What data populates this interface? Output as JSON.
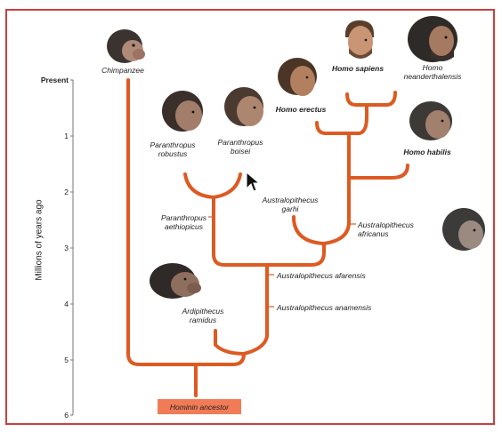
{
  "axis": {
    "title": "Millions of years ago",
    "ticks": [
      "Present",
      "1",
      "2",
      "3",
      "4",
      "5",
      "6"
    ]
  },
  "species": {
    "chimpanzee": "Chimpanzee",
    "homo_sapiens": "Homo sapiens",
    "homo_neanderthalensis": "Homo\nneanderthalensis",
    "homo_erectus": "Homo erectus",
    "homo_habilis": "Homo habilis",
    "paranthropus_robustus": "Paranthropus\nrobustus",
    "paranthropus_boisei": "Paranthropus\nboisei",
    "paranthropus_aethiopicus": "Paranthropus\naethiopicus",
    "australopithecus_garhi": "Australopithecus\ngarhi",
    "australopithecus_africanus": "Australopithecus\nafricanus",
    "australopithecus_afarensis": "Australopithecus afarensis",
    "australopithecus_anamensis": "Australopithecus anamensis",
    "ardipithecus_ramidus": "Ardipithecus\nramidus"
  },
  "root": {
    "label": "Hominin ancestor"
  },
  "colors": {
    "branch": "#dd5a22",
    "border": "#c9403f",
    "ancestor_box": "#f27b57"
  },
  "icons": [
    "chimpanzee-head-icon",
    "hominin-head-icon",
    "mouse-cursor-icon"
  ]
}
